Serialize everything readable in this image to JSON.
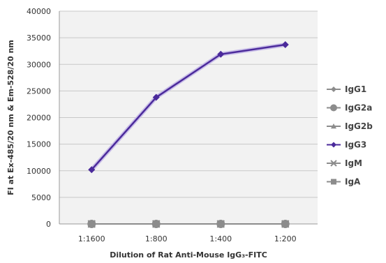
{
  "chart_data": {
    "type": "line",
    "categories": [
      "1:1600",
      "1:800",
      "1:400",
      "1:200"
    ],
    "series": [
      {
        "name": "IgG1",
        "values": [
          0,
          0,
          0,
          0
        ],
        "color": "#8c8c8c",
        "marker": "diamond"
      },
      {
        "name": "IgG2a",
        "values": [
          0,
          0,
          0,
          0
        ],
        "color": "#8c8c8c",
        "marker": "circle"
      },
      {
        "name": "IgG2b",
        "values": [
          0,
          0,
          0,
          0
        ],
        "color": "#8c8c8c",
        "marker": "triangle"
      },
      {
        "name": "IgG3",
        "values": [
          10200,
          23800,
          31900,
          33700
        ],
        "color": "#4b2a9b",
        "marker": "diamond"
      },
      {
        "name": "IgM",
        "values": [
          0,
          0,
          0,
          0
        ],
        "color": "#8c8c8c",
        "marker": "x"
      },
      {
        "name": "IgA",
        "values": [
          0,
          0,
          0,
          0
        ],
        "color": "#8c8c8c",
        "marker": "square"
      }
    ],
    "yticks": [
      0,
      5000,
      10000,
      15000,
      20000,
      25000,
      30000,
      35000,
      40000
    ],
    "ylim": [
      0,
      40000
    ],
    "xlabel": "Dilution of Rat Anti-Mouse IgG₃-FITC",
    "ylabel": "FI at Ex-485/20 nm & Em-528/20 nm",
    "grid": true,
    "legend": "right"
  }
}
